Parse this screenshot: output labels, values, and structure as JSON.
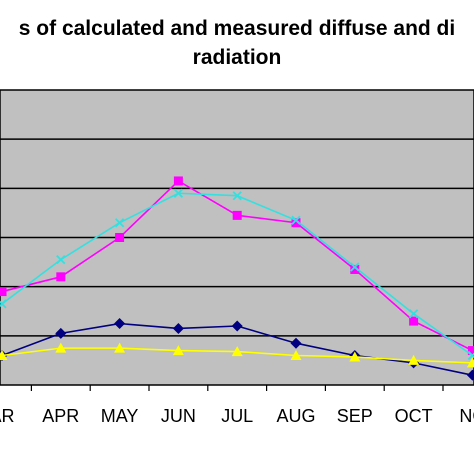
{
  "chart_data": {
    "type": "line",
    "title_lines": [
      "s of calculated and measured diffuse and di",
      "radiation"
    ],
    "categories": [
      "AR",
      "APR",
      "MAY",
      "JUN",
      "JUL",
      "AUG",
      "SEP",
      "OCT",
      "NC"
    ],
    "ylim": [
      0,
      6
    ],
    "grid": true,
    "plot_background": "#c0c0c0",
    "series": [
      {
        "color": "#ff00ff",
        "marker": "square",
        "values": [
          1.9,
          2.2,
          3.0,
          4.15,
          3.45,
          3.3,
          2.35,
          1.3,
          0.7
        ]
      },
      {
        "color": "#33e0e0",
        "marker": "x",
        "values": [
          1.65,
          2.55,
          3.3,
          3.9,
          3.85,
          3.35,
          2.4,
          1.45,
          0.6
        ]
      },
      {
        "color": "#000080",
        "marker": "diamond",
        "values": [
          0.6,
          1.05,
          1.25,
          1.15,
          1.2,
          0.85,
          0.6,
          0.45,
          0.2
        ]
      },
      {
        "color": "#ffff00",
        "marker": "triangle",
        "values": [
          0.6,
          0.75,
          0.75,
          0.7,
          0.68,
          0.6,
          0.57,
          0.5,
          0.45
        ]
      }
    ]
  }
}
